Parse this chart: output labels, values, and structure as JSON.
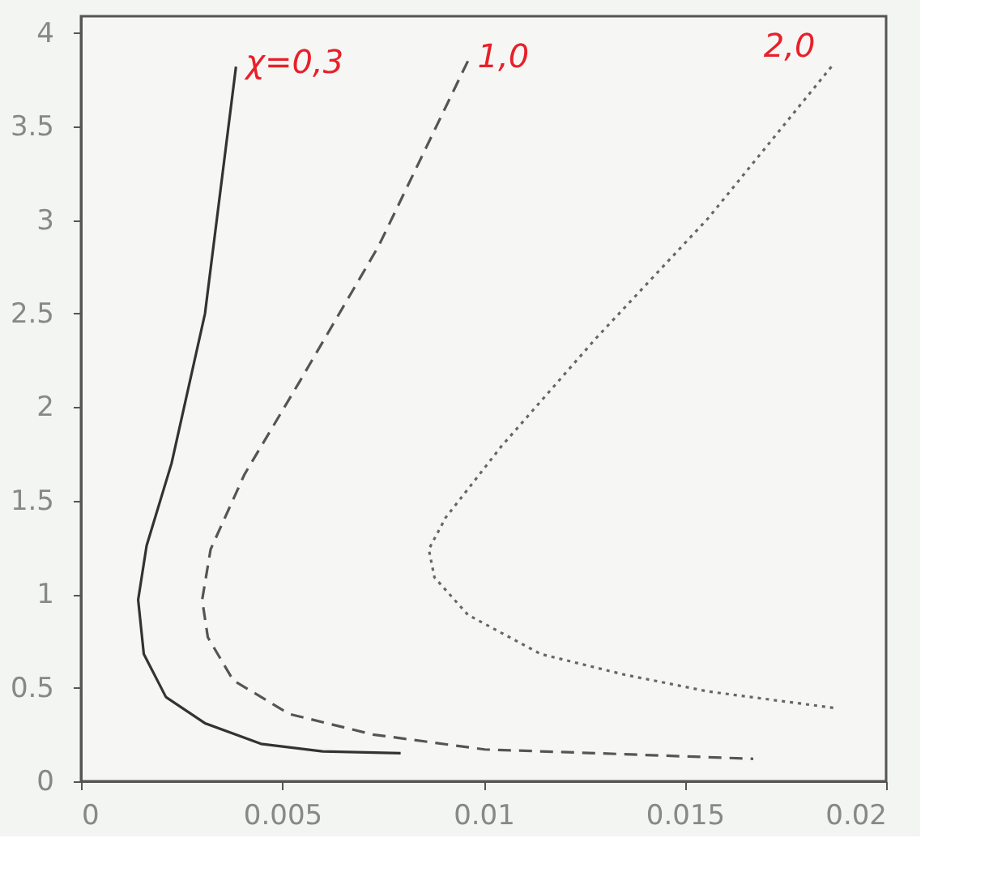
{
  "chart_data": {
    "type": "line",
    "xlim": [
      0,
      0.02
    ],
    "ylim": [
      0,
      4.09
    ],
    "xticks": [
      0,
      0.005,
      0.01,
      0.015,
      0.02
    ],
    "yticks": [
      0,
      0.5,
      1,
      1.5,
      2,
      2.5,
      3,
      3.5,
      4
    ],
    "grid": false,
    "marker": "none",
    "series": [
      {
        "name": "χ=0,3",
        "color": "#333333",
        "line_style": "solid",
        "x": [
          0.00385,
          0.00308,
          0.00225,
          0.00163,
          0.00142,
          0.00156,
          0.00211,
          0.00308,
          0.00447,
          0.006,
          0.00794
        ],
        "values": [
          3.82,
          2.5,
          1.7,
          1.26,
          0.97,
          0.68,
          0.45,
          0.31,
          0.2,
          0.16,
          0.15
        ]
      },
      {
        "name": "1,0",
        "color": "#555555",
        "line_style": "dashed",
        "x": [
          0.00961,
          0.00739,
          0.00544,
          0.00406,
          0.00322,
          0.00301,
          0.00315,
          0.00378,
          0.00517,
          0.00725,
          0.01003,
          0.0128,
          0.0167
        ],
        "values": [
          3.85,
          2.86,
          2.14,
          1.64,
          1.24,
          0.97,
          0.77,
          0.54,
          0.36,
          0.25,
          0.17,
          0.15,
          0.12
        ]
      },
      {
        "name": "2,0",
        "color": "#666666",
        "line_style": "dotted",
        "x": [
          0.01864,
          0.01558,
          0.0128,
          0.01044,
          0.00906,
          0.00864,
          0.00878,
          0.00961,
          0.01142,
          0.0135,
          0.01558,
          0.01878
        ],
        "values": [
          3.82,
          3.01,
          2.37,
          1.79,
          1.41,
          1.24,
          1.09,
          0.89,
          0.68,
          0.57,
          0.48,
          0.39
        ]
      }
    ]
  }
}
